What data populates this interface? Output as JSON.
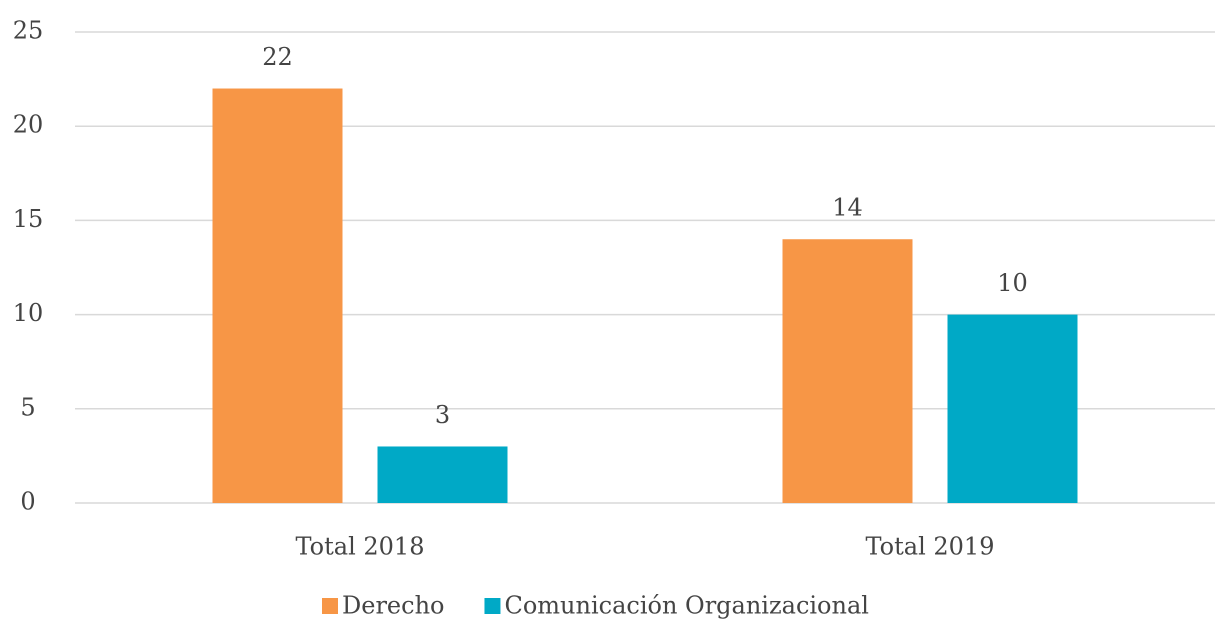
{
  "chart_data": {
    "type": "bar",
    "categories": [
      "Total 2018",
      "Total 2019"
    ],
    "series": [
      {
        "name": "Derecho",
        "color": "#f79646",
        "values": [
          22,
          14
        ]
      },
      {
        "name": "Comunicación Organizacional",
        "color": "#00a9c6",
        "values": [
          3,
          10
        ]
      }
    ],
    "ylim": [
      0,
      25
    ],
    "yticks": [
      0,
      5,
      10,
      15,
      20,
      25
    ],
    "grid": true,
    "legend": "bottom"
  }
}
